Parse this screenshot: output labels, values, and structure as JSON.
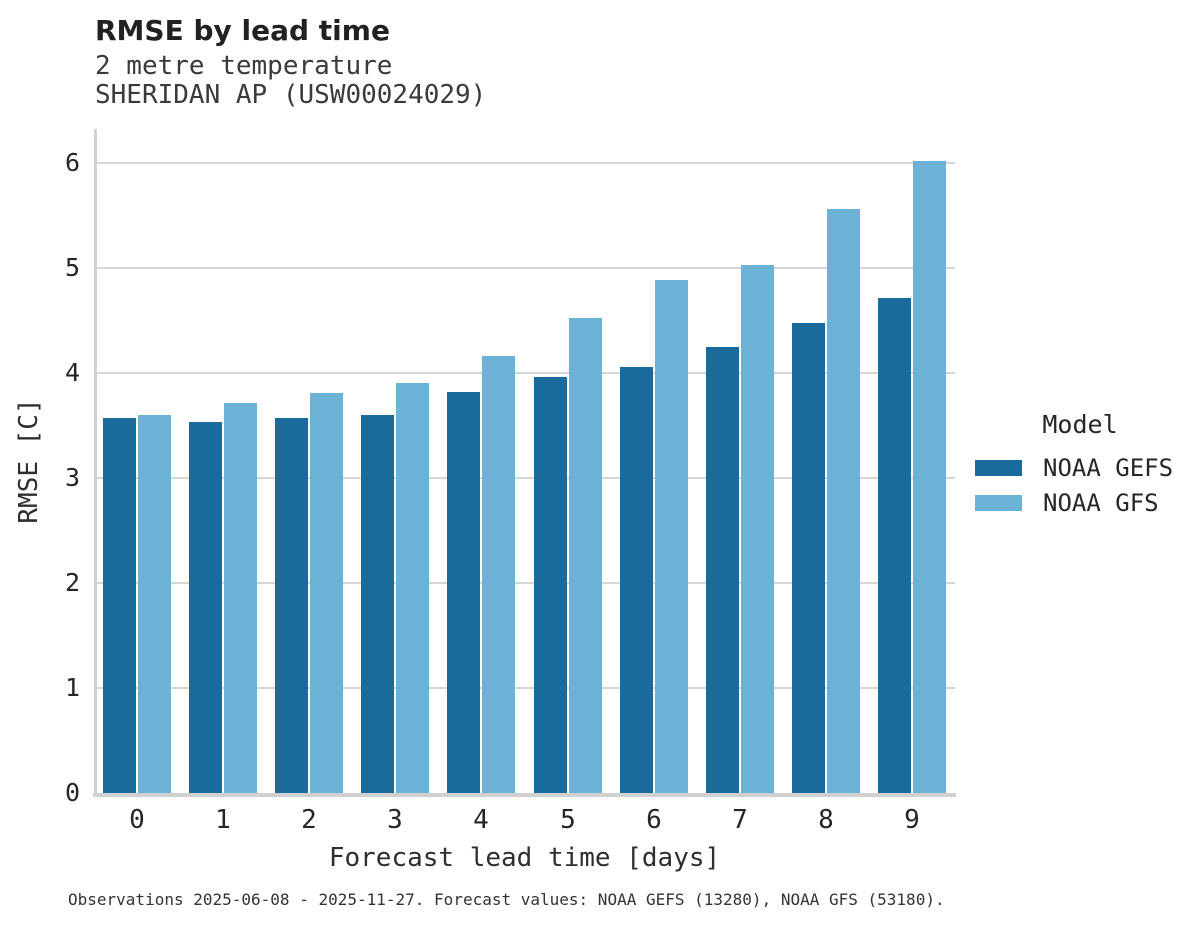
{
  "header": {
    "title": "RMSE by lead time",
    "subtitle_line1": "2 metre temperature",
    "subtitle_line2": "SHERIDAN AP (USW00024029)"
  },
  "chart_data": {
    "type": "bar",
    "title": "RMSE by lead time",
    "subtitle": [
      "2 metre temperature",
      "SHERIDAN AP (USW00024029)"
    ],
    "categories": [
      "0",
      "1",
      "2",
      "3",
      "4",
      "5",
      "6",
      "7",
      "8",
      "9"
    ],
    "series": [
      {
        "name": "NOAA GEFS",
        "color": "#1b6a9c",
        "values": [
          3.57,
          3.53,
          3.57,
          3.6,
          3.82,
          3.96,
          4.06,
          4.25,
          4.48,
          4.71
        ]
      },
      {
        "name": "NOAA GFS",
        "color": "#6cb1d6",
        "values": [
          3.6,
          3.71,
          3.81,
          3.9,
          4.16,
          4.52,
          4.89,
          5.03,
          5.56,
          6.02
        ]
      }
    ],
    "xlabel": "Forecast lead time [days]",
    "ylabel": "RMSE [C]",
    "ylim": [
      0,
      6.32
    ],
    "yticks": [
      0,
      1,
      2,
      3,
      4,
      5,
      6
    ],
    "grid": true,
    "legend_title": "Model",
    "legend_position": "right"
  },
  "legend": {
    "title": "Model",
    "entries": [
      {
        "label": "NOAA GEFS",
        "color": "#1b6a9c"
      },
      {
        "label": "NOAA GFS",
        "color": "#6cb1d6"
      }
    ]
  },
  "footnote": "Observations 2025-06-08 - 2025-11-27. Forecast values: NOAA GEFS (13280), NOAA GFS (53180).",
  "colors": {
    "gefs": "#1b6a9c",
    "gfs": "#6cb1d6",
    "gridline": "#d6d6d6",
    "spine": "#d0d0d0"
  }
}
